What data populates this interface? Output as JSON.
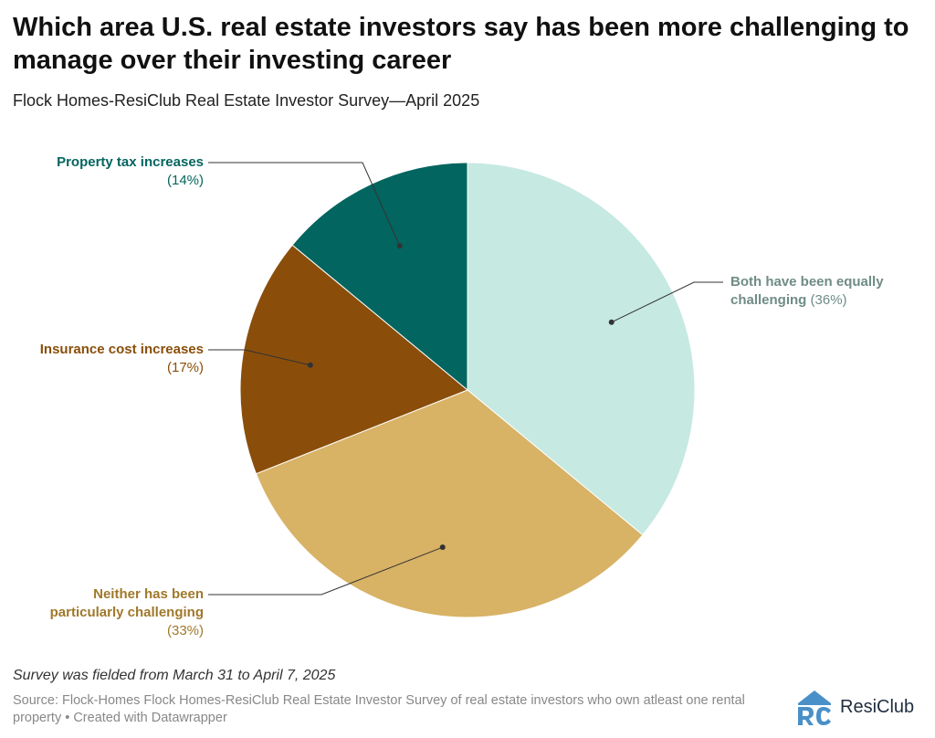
{
  "header": {
    "title": "Which area U.S. real estate investors say has been more challenging to manage over their investing career",
    "subtitle": "Flock Homes-ResiClub Real Estate Investor Survey—April 2025"
  },
  "chart_data": {
    "type": "pie",
    "title": "Which area U.S. real estate investors say has been more challenging to manage over their investing career",
    "subtitle": "Flock Homes-ResiClub Real Estate Investor Survey—April 2025",
    "unit": "%",
    "slices": [
      {
        "label": "Both have been equally challenging",
        "value": 36,
        "color": "#c6e9e2",
        "text_color": "#6f8c86"
      },
      {
        "label": "Neither has been particularly challenging",
        "value": 33,
        "color": "#d8b265",
        "text_color": "#a0782a"
      },
      {
        "label": "Insurance cost increases",
        "value": 17,
        "color": "#8a4e0a",
        "text_color": "#8a4e0a"
      },
      {
        "label": "Property tax increases",
        "value": 14,
        "color": "#03655f",
        "text_color": "#03655f"
      }
    ]
  },
  "labels": {
    "both_line1": "Both have been equally",
    "both_line2": "challenging",
    "both_pct": "(36%)",
    "neither_line1": "Neither has been",
    "neither_line2": "particularly challenging",
    "neither_pct": "(33%)",
    "insurance_line1": "Insurance cost increases",
    "insurance_pct": "(17%)",
    "tax_line1": "Property tax increases",
    "tax_pct": "(14%)"
  },
  "footer": {
    "note": "Survey was fielded from March 31 to April 7, 2025",
    "source": "Source: Flock-Homes Flock Homes-ResiClub Real Estate Investor Survey of real estate investors who own atleast one rental property • Created with Datawrapper",
    "brand": "ResiClub",
    "brand_color": "#4a90c8"
  }
}
